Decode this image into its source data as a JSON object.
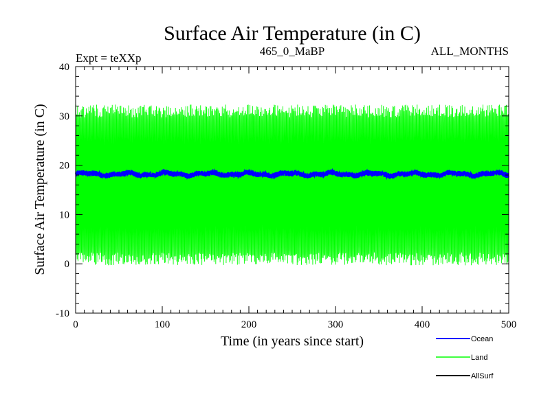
{
  "chart_data": {
    "type": "line",
    "title": "Surface Air Temperature (in C)",
    "subtitle_left": "Expt = teXXp",
    "subtitle_center": "465_0_MaBP",
    "subtitle_right": "ALL_MONTHS",
    "xlabel": "Time (in years since start)",
    "ylabel": "Surface Air Temperature (in C)",
    "xlim": [
      0,
      500
    ],
    "ylim": [
      -10,
      40
    ],
    "x_ticks": [
      0,
      100,
      200,
      300,
      400,
      500
    ],
    "y_ticks": [
      -10,
      0,
      10,
      20,
      30,
      40
    ],
    "grid": false,
    "legend_position": "bottom-right",
    "series": [
      {
        "name": "Ocean",
        "color": "#0000ff",
        "description": "monthly values oscillating within a narrow band",
        "band_low": 17.5,
        "band_high": 18.8,
        "mean": 18.2
      },
      {
        "name": "Land",
        "color": "#00ff00",
        "description": "monthly values oscillating seasonally across a wide band",
        "band_low": 1,
        "band_high": 31,
        "extreme_low": -1,
        "extreme_high": 32.5,
        "mean": 16
      },
      {
        "name": "AllSurf",
        "color": "#000000",
        "description": "not visible (hidden behind other series)"
      }
    ]
  }
}
